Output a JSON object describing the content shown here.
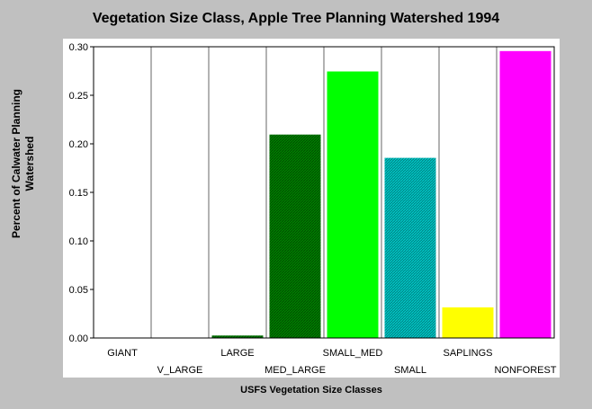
{
  "chart_data": {
    "type": "bar",
    "title": "Vegetation Size Class, Apple Tree Planning Watershed 1994",
    "xlabel": "USFS Vegetation Size Classes",
    "ylabel": "Percent of Calwater Planning\nWatershed",
    "categories": [
      "GIANT",
      "V_LARGE",
      "LARGE",
      "MED_LARGE",
      "SMALL_MED",
      "SMALL",
      "SAPLINGS",
      "NONFOREST"
    ],
    "values": [
      0.0,
      0.0,
      0.003,
      0.21,
      0.275,
      0.186,
      0.032,
      0.296
    ],
    "bar_colors": [
      "#006400",
      "#006400",
      "#008000",
      "#008000",
      "#00ff00",
      "#008b8b",
      "#ffff00",
      "#ff00ff"
    ],
    "bar_patterns": [
      "solid",
      "solid",
      "hatched",
      "hatched",
      "solid",
      "hatched",
      "solid",
      "solid"
    ],
    "ylim": [
      0,
      0.3
    ],
    "yticks": [
      "0.00",
      "0.05",
      "0.10",
      "0.15",
      "0.20",
      "0.25",
      "0.30"
    ],
    "grid": "vertical lines between categories",
    "legend": "none"
  }
}
